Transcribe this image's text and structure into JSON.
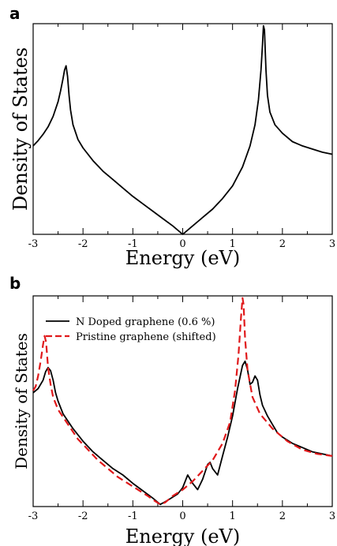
{
  "chart_data": [
    {
      "panel": "a",
      "type": "line",
      "xlabel": "Energy (eV)",
      "ylabel": "Density of States",
      "xlim": [
        -3,
        3
      ],
      "ylim": [
        0,
        1
      ],
      "xticks": [
        "-3",
        "-2",
        "-1",
        "0",
        "1",
        "2",
        "3"
      ],
      "legend": "none",
      "series": [
        {
          "color": "#000000",
          "dash": "solid",
          "x": [
            -3.0,
            -2.9,
            -2.8,
            -2.7,
            -2.6,
            -2.5,
            -2.45,
            -2.4,
            -2.37,
            -2.34,
            -2.31,
            -2.28,
            -2.25,
            -2.2,
            -2.1,
            -2.0,
            -1.8,
            -1.6,
            -1.4,
            -1.2,
            -1.0,
            -0.8,
            -0.6,
            -0.4,
            -0.2,
            0.0,
            0.2,
            0.4,
            0.6,
            0.8,
            1.0,
            1.2,
            1.35,
            1.45,
            1.52,
            1.57,
            1.6,
            1.62,
            1.64,
            1.67,
            1.7,
            1.75,
            1.85,
            2.0,
            2.2,
            2.4,
            2.6,
            2.8,
            3.0
          ],
          "y": [
            0.42,
            0.445,
            0.475,
            0.51,
            0.56,
            0.63,
            0.68,
            0.74,
            0.78,
            0.8,
            0.75,
            0.66,
            0.59,
            0.52,
            0.45,
            0.41,
            0.35,
            0.3,
            0.26,
            0.22,
            0.18,
            0.145,
            0.11,
            0.075,
            0.04,
            0.0,
            0.04,
            0.08,
            0.12,
            0.17,
            0.23,
            0.32,
            0.42,
            0.52,
            0.64,
            0.78,
            0.9,
            0.99,
            0.97,
            0.78,
            0.66,
            0.58,
            0.52,
            0.48,
            0.44,
            0.42,
            0.405,
            0.39,
            0.38
          ]
        }
      ]
    },
    {
      "panel": "b",
      "type": "line",
      "xlabel": "Energy (eV)",
      "ylabel": "Density of States",
      "xlim": [
        -3,
        3
      ],
      "ylim": [
        0,
        1
      ],
      "xticks": [
        "-3",
        "-2",
        "-1",
        "0",
        "1",
        "2",
        "3"
      ],
      "legend": "top-left",
      "series": [
        {
          "name": "N Doped graphene (0.6 %)",
          "color": "#000000",
          "dash": "solid",
          "x": [
            -3.0,
            -2.9,
            -2.8,
            -2.75,
            -2.7,
            -2.65,
            -2.6,
            -2.55,
            -2.5,
            -2.4,
            -2.2,
            -2.0,
            -1.8,
            -1.6,
            -1.4,
            -1.2,
            -1.0,
            -0.8,
            -0.6,
            -0.45,
            -0.3,
            -0.1,
            0.0,
            0.1,
            0.2,
            0.3,
            0.4,
            0.5,
            0.55,
            0.6,
            0.7,
            0.8,
            0.9,
            1.0,
            1.1,
            1.2,
            1.25,
            1.3,
            1.35,
            1.4,
            1.45,
            1.5,
            1.55,
            1.6,
            1.7,
            1.8,
            1.9,
            2.0,
            2.2,
            2.4,
            2.6,
            2.8,
            3.0
          ],
          "y": [
            0.54,
            0.56,
            0.6,
            0.64,
            0.66,
            0.645,
            0.6,
            0.54,
            0.5,
            0.44,
            0.37,
            0.31,
            0.26,
            0.22,
            0.18,
            0.15,
            0.11,
            0.075,
            0.04,
            0.01,
            0.03,
            0.06,
            0.09,
            0.15,
            0.11,
            0.08,
            0.13,
            0.2,
            0.21,
            0.18,
            0.15,
            0.24,
            0.33,
            0.43,
            0.56,
            0.67,
            0.69,
            0.65,
            0.58,
            0.59,
            0.62,
            0.6,
            0.53,
            0.48,
            0.43,
            0.39,
            0.35,
            0.33,
            0.3,
            0.28,
            0.26,
            0.25,
            0.24
          ]
        },
        {
          "name": "Pristine graphene (shifted)",
          "color": "#e0191b",
          "dash": "dashed",
          "x": [
            -3.0,
            -2.95,
            -2.9,
            -2.85,
            -2.8,
            -2.77,
            -2.74,
            -2.7,
            -2.65,
            -2.6,
            -2.5,
            -2.3,
            -2.1,
            -1.9,
            -1.7,
            -1.5,
            -1.3,
            -1.1,
            -0.9,
            -0.7,
            -0.55,
            -0.45,
            -0.35,
            -0.2,
            0.0,
            0.2,
            0.4,
            0.6,
            0.8,
            0.95,
            1.05,
            1.12,
            1.17,
            1.2,
            1.22,
            1.25,
            1.3,
            1.4,
            1.55,
            1.8,
            2.1,
            2.4,
            2.7,
            3.0
          ],
          "y": [
            0.55,
            0.57,
            0.62,
            0.69,
            0.77,
            0.81,
            0.78,
            0.66,
            0.58,
            0.52,
            0.46,
            0.39,
            0.32,
            0.27,
            0.22,
            0.18,
            0.14,
            0.11,
            0.08,
            0.05,
            0.025,
            0.01,
            0.02,
            0.05,
            0.08,
            0.12,
            0.17,
            0.22,
            0.3,
            0.4,
            0.55,
            0.72,
            0.9,
            0.99,
            0.96,
            0.8,
            0.65,
            0.52,
            0.44,
            0.37,
            0.31,
            0.27,
            0.25,
            0.24
          ]
        }
      ]
    }
  ]
}
